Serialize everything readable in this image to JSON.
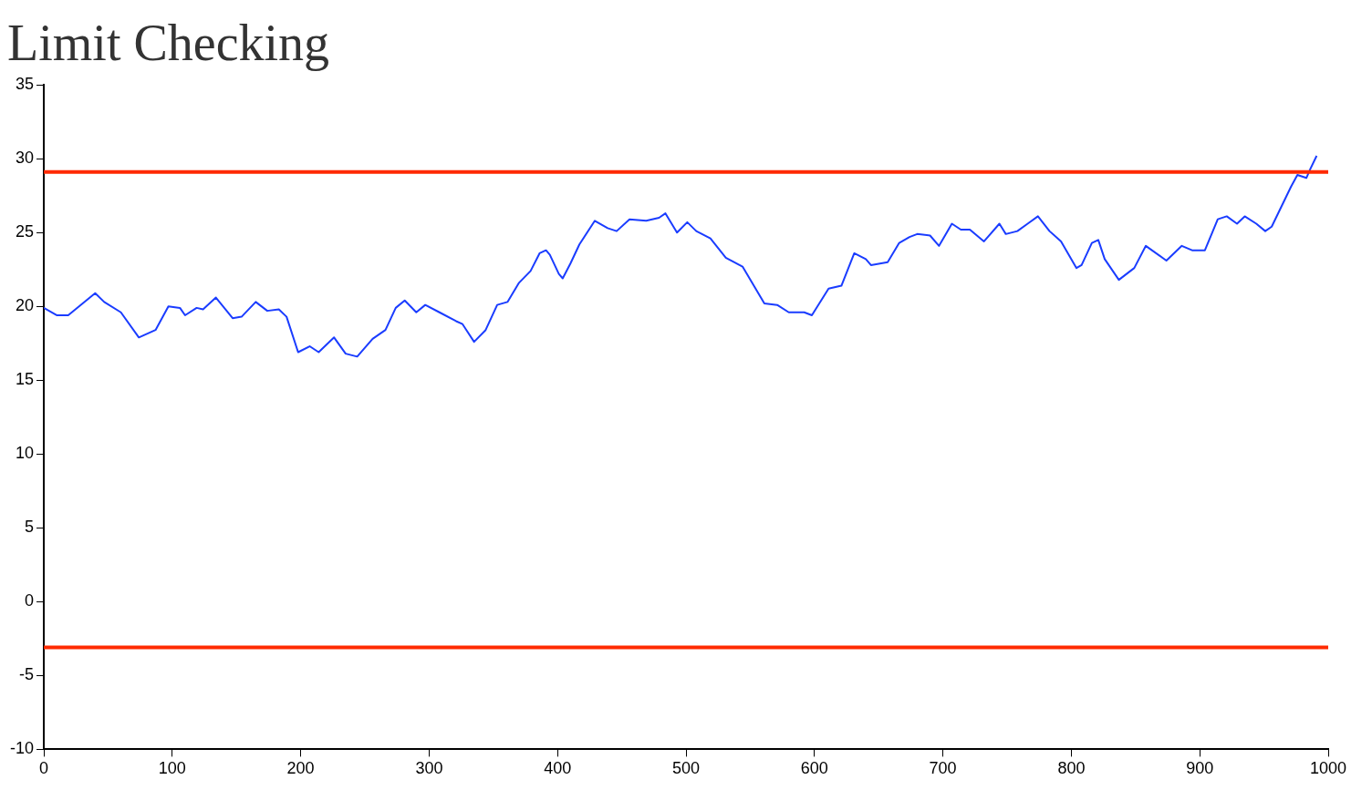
{
  "chart_data": {
    "type": "line",
    "title": "Limit Checking",
    "x": [
      0,
      10,
      19,
      40,
      47,
      60,
      74,
      87,
      97,
      106,
      110,
      119,
      124,
      134,
      147,
      154,
      165,
      174,
      183,
      189,
      198,
      207,
      214,
      226,
      235,
      244,
      256,
      266,
      274,
      281,
      290,
      297,
      308,
      321,
      326,
      335,
      344,
      353,
      361,
      370,
      379,
      386,
      391,
      394,
      401,
      404,
      410,
      417,
      429,
      439,
      446,
      456,
      469,
      479,
      484,
      493,
      501,
      508,
      519,
      531,
      544,
      561,
      571,
      580,
      592,
      598,
      611,
      621,
      631,
      640,
      644,
      657,
      666,
      674,
      680,
      690,
      697,
      707,
      714,
      721,
      732,
      744,
      749,
      758,
      766,
      774,
      783,
      792,
      804,
      808,
      816,
      821,
      826,
      837,
      849,
      858,
      874,
      886,
      894,
      904,
      914,
      921,
      929,
      935,
      944,
      951,
      956,
      971,
      976,
      983,
      986,
      991
    ],
    "series": [
      {
        "color": "#1a3cff",
        "values": [
          19.9,
          19.4,
          19.4,
          20.9,
          20.3,
          19.6,
          17.9,
          18.4,
          20.0,
          19.9,
          19.4,
          19.9,
          19.8,
          20.6,
          19.2,
          19.3,
          20.3,
          19.7,
          19.8,
          19.3,
          16.9,
          17.3,
          16.9,
          17.9,
          16.8,
          16.6,
          17.8,
          18.4,
          19.9,
          20.4,
          19.6,
          20.1,
          19.6,
          19.0,
          18.8,
          17.6,
          18.4,
          20.1,
          20.3,
          21.6,
          22.4,
          23.6,
          23.8,
          23.5,
          22.2,
          21.9,
          22.9,
          24.2,
          25.8,
          25.3,
          25.1,
          25.9,
          25.8,
          26.0,
          26.3,
          25.0,
          25.7,
          25.1,
          24.6,
          23.3,
          22.7,
          20.2,
          20.1,
          19.6,
          19.6,
          19.4,
          21.2,
          21.4,
          23.6,
          23.2,
          22.8,
          23.0,
          24.3,
          24.7,
          24.9,
          24.8,
          24.1,
          25.6,
          25.2,
          25.2,
          24.4,
          25.6,
          24.9,
          25.1,
          25.6,
          26.1,
          25.1,
          24.4,
          22.6,
          22.8,
          24.3,
          24.5,
          23.2,
          21.8,
          22.6,
          24.1,
          23.1,
          24.1,
          23.8,
          23.8,
          25.9,
          26.1,
          25.6,
          26.1,
          25.6,
          25.1,
          25.4,
          28.1,
          28.9,
          28.7,
          29.3,
          30.2
        ]
      }
    ],
    "xlim": [
      0,
      1000
    ],
    "xticks": [
      0,
      100,
      200,
      300,
      400,
      500,
      600,
      700,
      800,
      900,
      1000
    ],
    "ylim": [
      -10,
      35
    ],
    "yticks": [
      -10,
      -5,
      0,
      5,
      10,
      15,
      20,
      25,
      30,
      35
    ],
    "ref_lines": [
      {
        "axis": "y",
        "value": 29.1,
        "color": "#ff2a00"
      },
      {
        "axis": "y",
        "value": -3.1,
        "color": "#ff2a00"
      }
    ],
    "grid": false,
    "legend": false,
    "marker": "none",
    "line_style": "solid"
  }
}
